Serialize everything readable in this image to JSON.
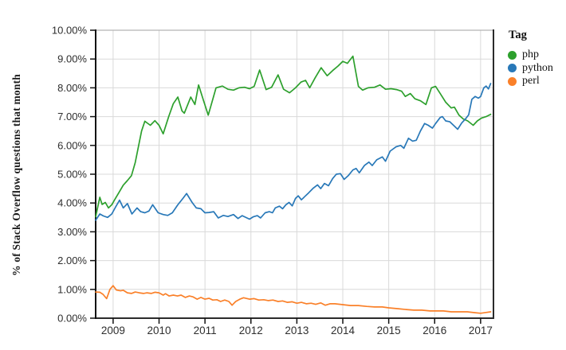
{
  "chart_data": {
    "type": "line",
    "ylabel": "% of Stack Overflow questions that month",
    "xlim": [
      2008.62,
      2017.28
    ],
    "ylim": [
      0,
      10
    ],
    "x_ticks": [
      2009,
      2010,
      2011,
      2012,
      2013,
      2014,
      2015,
      2016,
      2017
    ],
    "x_tick_labels": [
      "2009",
      "2010",
      "2011",
      "2012",
      "2013",
      "2014",
      "2015",
      "2016",
      "2017"
    ],
    "y_ticks": [
      0,
      1,
      2,
      3,
      4,
      5,
      6,
      7,
      8,
      9,
      10
    ],
    "y_tick_labels": [
      "0.00%",
      "1.00%",
      "2.00%",
      "3.00%",
      "4.00%",
      "5.00%",
      "6.00%",
      "7.00%",
      "8.00%",
      "9.00%",
      "10.00%"
    ],
    "grid": true,
    "legend": {
      "title": "Tag",
      "position": "right"
    },
    "series": [
      {
        "name": "php",
        "color": "#2DA02D",
        "points": [
          [
            2008.62,
            3.52
          ],
          [
            2008.71,
            4.2
          ],
          [
            2008.76,
            3.95
          ],
          [
            2008.83,
            4.02
          ],
          [
            2008.9,
            3.83
          ],
          [
            2008.97,
            3.94
          ],
          [
            2009.05,
            4.16
          ],
          [
            2009.14,
            4.4
          ],
          [
            2009.22,
            4.62
          ],
          [
            2009.31,
            4.78
          ],
          [
            2009.4,
            4.95
          ],
          [
            2009.48,
            5.4
          ],
          [
            2009.55,
            5.95
          ],
          [
            2009.62,
            6.5
          ],
          [
            2009.69,
            6.84
          ],
          [
            2009.81,
            6.7
          ],
          [
            2009.91,
            6.86
          ],
          [
            2010.0,
            6.7
          ],
          [
            2010.09,
            6.4
          ],
          [
            2010.21,
            7.0
          ],
          [
            2010.31,
            7.45
          ],
          [
            2010.41,
            7.68
          ],
          [
            2010.5,
            7.2
          ],
          [
            2010.55,
            7.12
          ],
          [
            2010.69,
            7.68
          ],
          [
            2010.78,
            7.42
          ],
          [
            2010.86,
            8.1
          ],
          [
            2010.97,
            7.55
          ],
          [
            2011.07,
            7.05
          ],
          [
            2011.17,
            7.6
          ],
          [
            2011.24,
            8.0
          ],
          [
            2011.38,
            8.06
          ],
          [
            2011.5,
            7.95
          ],
          [
            2011.62,
            7.92
          ],
          [
            2011.74,
            8.0
          ],
          [
            2011.86,
            8.02
          ],
          [
            2011.97,
            7.97
          ],
          [
            2012.07,
            8.05
          ],
          [
            2012.19,
            8.62
          ],
          [
            2012.33,
            7.94
          ],
          [
            2012.45,
            8.02
          ],
          [
            2012.59,
            8.45
          ],
          [
            2012.71,
            7.95
          ],
          [
            2012.84,
            7.83
          ],
          [
            2012.97,
            8.0
          ],
          [
            2013.09,
            8.2
          ],
          [
            2013.19,
            8.26
          ],
          [
            2013.28,
            8.0
          ],
          [
            2013.4,
            8.35
          ],
          [
            2013.53,
            8.7
          ],
          [
            2013.66,
            8.42
          ],
          [
            2013.78,
            8.6
          ],
          [
            2013.9,
            8.76
          ],
          [
            2014.0,
            8.92
          ],
          [
            2014.1,
            8.85
          ],
          [
            2014.22,
            9.1
          ],
          [
            2014.34,
            8.05
          ],
          [
            2014.43,
            7.92
          ],
          [
            2014.55,
            8.0
          ],
          [
            2014.69,
            8.02
          ],
          [
            2014.81,
            8.1
          ],
          [
            2014.93,
            7.95
          ],
          [
            2015.05,
            7.97
          ],
          [
            2015.17,
            7.94
          ],
          [
            2015.28,
            7.88
          ],
          [
            2015.36,
            7.7
          ],
          [
            2015.47,
            7.8
          ],
          [
            2015.57,
            7.62
          ],
          [
            2015.69,
            7.55
          ],
          [
            2015.81,
            7.42
          ],
          [
            2015.93,
            8.0
          ],
          [
            2016.02,
            8.05
          ],
          [
            2016.12,
            7.8
          ],
          [
            2016.24,
            7.5
          ],
          [
            2016.36,
            7.3
          ],
          [
            2016.43,
            7.33
          ],
          [
            2016.53,
            7.05
          ],
          [
            2016.62,
            6.92
          ],
          [
            2016.72,
            6.85
          ],
          [
            2016.84,
            6.7
          ],
          [
            2016.93,
            6.85
          ],
          [
            2017.02,
            6.95
          ],
          [
            2017.12,
            7.0
          ],
          [
            2017.22,
            7.08
          ]
        ]
      },
      {
        "name": "python",
        "color": "#2878B8",
        "points": [
          [
            2008.62,
            3.4
          ],
          [
            2008.71,
            3.62
          ],
          [
            2008.79,
            3.55
          ],
          [
            2008.88,
            3.5
          ],
          [
            2008.97,
            3.62
          ],
          [
            2009.05,
            3.85
          ],
          [
            2009.14,
            4.1
          ],
          [
            2009.22,
            3.83
          ],
          [
            2009.31,
            3.98
          ],
          [
            2009.41,
            3.62
          ],
          [
            2009.52,
            3.83
          ],
          [
            2009.6,
            3.7
          ],
          [
            2009.69,
            3.66
          ],
          [
            2009.78,
            3.72
          ],
          [
            2009.86,
            3.94
          ],
          [
            2009.98,
            3.66
          ],
          [
            2010.09,
            3.6
          ],
          [
            2010.19,
            3.57
          ],
          [
            2010.29,
            3.66
          ],
          [
            2010.41,
            3.94
          ],
          [
            2010.52,
            4.16
          ],
          [
            2010.6,
            4.33
          ],
          [
            2010.72,
            4.02
          ],
          [
            2010.81,
            3.83
          ],
          [
            2010.91,
            3.8
          ],
          [
            2011.0,
            3.66
          ],
          [
            2011.09,
            3.67
          ],
          [
            2011.19,
            3.7
          ],
          [
            2011.29,
            3.48
          ],
          [
            2011.4,
            3.57
          ],
          [
            2011.5,
            3.53
          ],
          [
            2011.62,
            3.6
          ],
          [
            2011.72,
            3.46
          ],
          [
            2011.81,
            3.56
          ],
          [
            2011.97,
            3.44
          ],
          [
            2012.05,
            3.52
          ],
          [
            2012.14,
            3.56
          ],
          [
            2012.21,
            3.48
          ],
          [
            2012.31,
            3.66
          ],
          [
            2012.4,
            3.7
          ],
          [
            2012.47,
            3.66
          ],
          [
            2012.53,
            3.83
          ],
          [
            2012.62,
            3.89
          ],
          [
            2012.69,
            3.8
          ],
          [
            2012.76,
            3.94
          ],
          [
            2012.83,
            4.02
          ],
          [
            2012.9,
            3.9
          ],
          [
            2012.97,
            4.16
          ],
          [
            2013.03,
            4.25
          ],
          [
            2013.1,
            4.11
          ],
          [
            2013.17,
            4.22
          ],
          [
            2013.26,
            4.36
          ],
          [
            2013.36,
            4.52
          ],
          [
            2013.45,
            4.63
          ],
          [
            2013.52,
            4.5
          ],
          [
            2013.6,
            4.68
          ],
          [
            2013.69,
            4.6
          ],
          [
            2013.78,
            4.85
          ],
          [
            2013.86,
            5.0
          ],
          [
            2013.95,
            5.02
          ],
          [
            2014.03,
            4.82
          ],
          [
            2014.12,
            4.95
          ],
          [
            2014.22,
            5.15
          ],
          [
            2014.29,
            5.2
          ],
          [
            2014.36,
            5.05
          ],
          [
            2014.47,
            5.3
          ],
          [
            2014.57,
            5.42
          ],
          [
            2014.64,
            5.3
          ],
          [
            2014.74,
            5.5
          ],
          [
            2014.86,
            5.6
          ],
          [
            2014.93,
            5.45
          ],
          [
            2015.03,
            5.8
          ],
          [
            2015.16,
            5.95
          ],
          [
            2015.26,
            6.0
          ],
          [
            2015.33,
            5.9
          ],
          [
            2015.43,
            6.25
          ],
          [
            2015.52,
            6.15
          ],
          [
            2015.6,
            6.18
          ],
          [
            2015.69,
            6.5
          ],
          [
            2015.78,
            6.76
          ],
          [
            2015.86,
            6.7
          ],
          [
            2015.95,
            6.6
          ],
          [
            2016.02,
            6.76
          ],
          [
            2016.12,
            6.97
          ],
          [
            2016.17,
            7.0
          ],
          [
            2016.24,
            6.85
          ],
          [
            2016.33,
            6.82
          ],
          [
            2016.41,
            6.7
          ],
          [
            2016.5,
            6.56
          ],
          [
            2016.59,
            6.78
          ],
          [
            2016.67,
            6.92
          ],
          [
            2016.74,
            7.06
          ],
          [
            2016.81,
            7.6
          ],
          [
            2016.88,
            7.7
          ],
          [
            2016.95,
            7.64
          ],
          [
            2017.0,
            7.7
          ],
          [
            2017.07,
            8.0
          ],
          [
            2017.12,
            8.06
          ],
          [
            2017.17,
            7.96
          ],
          [
            2017.22,
            8.15
          ]
        ]
      },
      {
        "name": "perl",
        "color": "#FA8029",
        "points": [
          [
            2008.62,
            0.91
          ],
          [
            2008.71,
            0.9
          ],
          [
            2008.78,
            0.83
          ],
          [
            2008.86,
            0.68
          ],
          [
            2008.93,
            1.0
          ],
          [
            2009.0,
            1.13
          ],
          [
            2009.07,
            0.98
          ],
          [
            2009.16,
            0.95
          ],
          [
            2009.22,
            0.97
          ],
          [
            2009.31,
            0.88
          ],
          [
            2009.4,
            0.86
          ],
          [
            2009.48,
            0.91
          ],
          [
            2009.57,
            0.88
          ],
          [
            2009.66,
            0.86
          ],
          [
            2009.74,
            0.88
          ],
          [
            2009.83,
            0.86
          ],
          [
            2009.91,
            0.9
          ],
          [
            2010.0,
            0.88
          ],
          [
            2010.09,
            0.8
          ],
          [
            2010.14,
            0.85
          ],
          [
            2010.22,
            0.77
          ],
          [
            2010.31,
            0.8
          ],
          [
            2010.4,
            0.77
          ],
          [
            2010.48,
            0.8
          ],
          [
            2010.57,
            0.72
          ],
          [
            2010.66,
            0.77
          ],
          [
            2010.74,
            0.74
          ],
          [
            2010.83,
            0.66
          ],
          [
            2010.91,
            0.72
          ],
          [
            2011.0,
            0.66
          ],
          [
            2011.09,
            0.69
          ],
          [
            2011.17,
            0.63
          ],
          [
            2011.26,
            0.64
          ],
          [
            2011.34,
            0.58
          ],
          [
            2011.43,
            0.63
          ],
          [
            2011.52,
            0.58
          ],
          [
            2011.59,
            0.45
          ],
          [
            2011.67,
            0.58
          ],
          [
            2011.76,
            0.66
          ],
          [
            2011.84,
            0.71
          ],
          [
            2011.97,
            0.66
          ],
          [
            2012.07,
            0.68
          ],
          [
            2012.17,
            0.63
          ],
          [
            2012.28,
            0.64
          ],
          [
            2012.38,
            0.61
          ],
          [
            2012.48,
            0.63
          ],
          [
            2012.59,
            0.58
          ],
          [
            2012.69,
            0.6
          ],
          [
            2012.79,
            0.55
          ],
          [
            2012.9,
            0.57
          ],
          [
            2013.0,
            0.52
          ],
          [
            2013.1,
            0.55
          ],
          [
            2013.21,
            0.5
          ],
          [
            2013.31,
            0.52
          ],
          [
            2013.41,
            0.48
          ],
          [
            2013.52,
            0.53
          ],
          [
            2013.62,
            0.45
          ],
          [
            2013.72,
            0.5
          ],
          [
            2013.83,
            0.5
          ],
          [
            2014.0,
            0.47
          ],
          [
            2014.17,
            0.44
          ],
          [
            2014.34,
            0.44
          ],
          [
            2014.52,
            0.41
          ],
          [
            2014.69,
            0.39
          ],
          [
            2014.86,
            0.39
          ],
          [
            2015.0,
            0.36
          ],
          [
            2015.21,
            0.33
          ],
          [
            2015.38,
            0.3
          ],
          [
            2015.55,
            0.28
          ],
          [
            2015.72,
            0.28
          ],
          [
            2015.9,
            0.25
          ],
          [
            2016.0,
            0.25
          ],
          [
            2016.19,
            0.25
          ],
          [
            2016.36,
            0.22
          ],
          [
            2016.53,
            0.22
          ],
          [
            2016.71,
            0.22
          ],
          [
            2016.88,
            0.19
          ],
          [
            2017.0,
            0.17
          ],
          [
            2017.12,
            0.2
          ],
          [
            2017.22,
            0.22
          ]
        ]
      }
    ]
  }
}
